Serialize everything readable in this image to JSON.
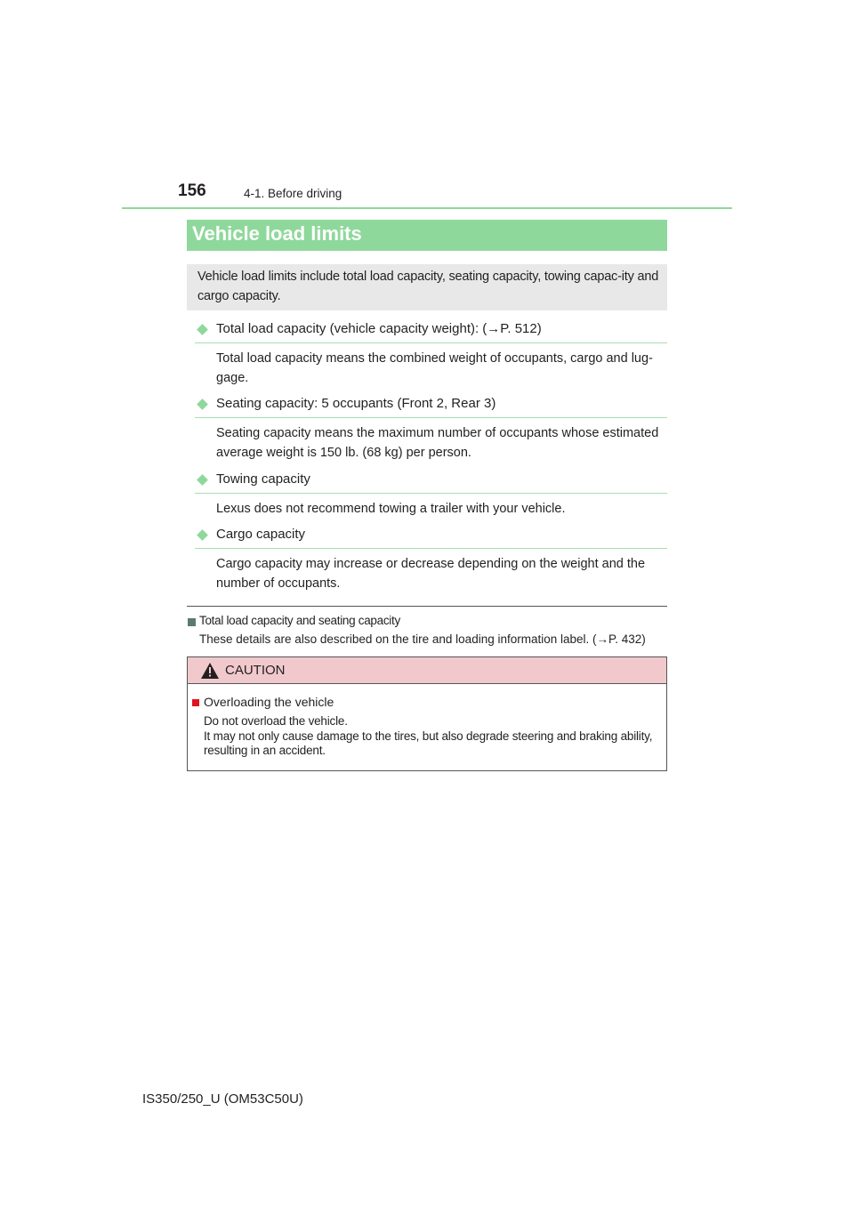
{
  "header": {
    "page_number": "156",
    "section": "4-1. Before driving"
  },
  "title": "Vehicle load limits",
  "intro": "Vehicle load limits include total load capacity, seating capacity, towing capac-ity and cargo capacity.",
  "items": [
    {
      "title": "Total load capacity (vehicle capacity weight): (→P. 512)",
      "body": "Total load capacity means the combined weight of occupants, cargo and lug-gage."
    },
    {
      "title": "Seating capacity: 5 occupants (Front 2, Rear 3)",
      "body": "Seating capacity means the maximum number of occupants whose estimated average weight is 150 lb. (68 kg) per person."
    },
    {
      "title": "Towing capacity",
      "body": "Lexus does not recommend towing a trailer with your vehicle."
    },
    {
      "title": "Cargo capacity",
      "body": "Cargo capacity may increase or decrease depending on the weight and the number of occupants."
    }
  ],
  "note": {
    "title": "Total load capacity and seating capacity",
    "body": "These details are also described on the tire and loading information label. (→P. 432)"
  },
  "caution": {
    "label": "CAUTION",
    "icon": "warning-triangle-icon",
    "title": "Overloading the vehicle",
    "line1": "Do not overload the vehicle.",
    "line2": "It may not only cause damage to the tires, but also degrade steering and braking ability, resulting in an accident."
  },
  "footer": "IS350/250_U (OM53C50U)",
  "colors": {
    "accent": "#8fd89b",
    "caution_bg": "#f1c9cc",
    "caution_marker": "#e0141e"
  }
}
